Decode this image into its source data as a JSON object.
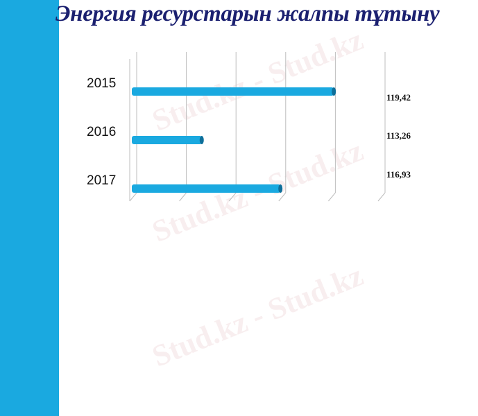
{
  "title": "Энергия ресурстарын жалпы тұтыну",
  "watermark": "Stud.kz - Stud.kz",
  "colors": {
    "strip": "#1aa9e0",
    "bar": "#1aa9e0",
    "bar_end": "#0e6f9a",
    "title": "#1b2070"
  },
  "chart_data": {
    "type": "bar",
    "orientation": "horizontal",
    "style": "3d-cylinder",
    "categories": [
      "2015",
      "2016",
      "2017"
    ],
    "values": [
      119.42,
      113.26,
      116.93
    ],
    "data_labels": [
      "119,42",
      "113,26",
      "116,93"
    ],
    "title": "",
    "xlabel": "",
    "ylabel": "",
    "xlim": [
      110,
      121
    ],
    "grid": true,
    "gridline_count": 6,
    "legend": "none"
  }
}
